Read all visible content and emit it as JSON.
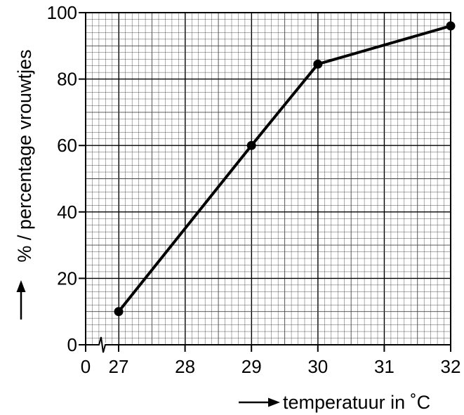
{
  "chart_data": {
    "type": "line",
    "title": "",
    "xlabel": "temperatuur in ˚C",
    "ylabel": "% / percentage vrouwtjes",
    "x_axis_break": true,
    "x_ticks": [
      "0",
      "27",
      "28",
      "29",
      "30",
      "31",
      "32"
    ],
    "y_ticks": [
      "0",
      "20",
      "40",
      "60",
      "80",
      "100"
    ],
    "xlim": [
      27,
      32
    ],
    "ylim": [
      0,
      100
    ],
    "grid": true,
    "series": [
      {
        "x": [
          27,
          29,
          30,
          32
        ],
        "y": [
          10,
          60,
          84.5,
          96
        ]
      }
    ]
  }
}
